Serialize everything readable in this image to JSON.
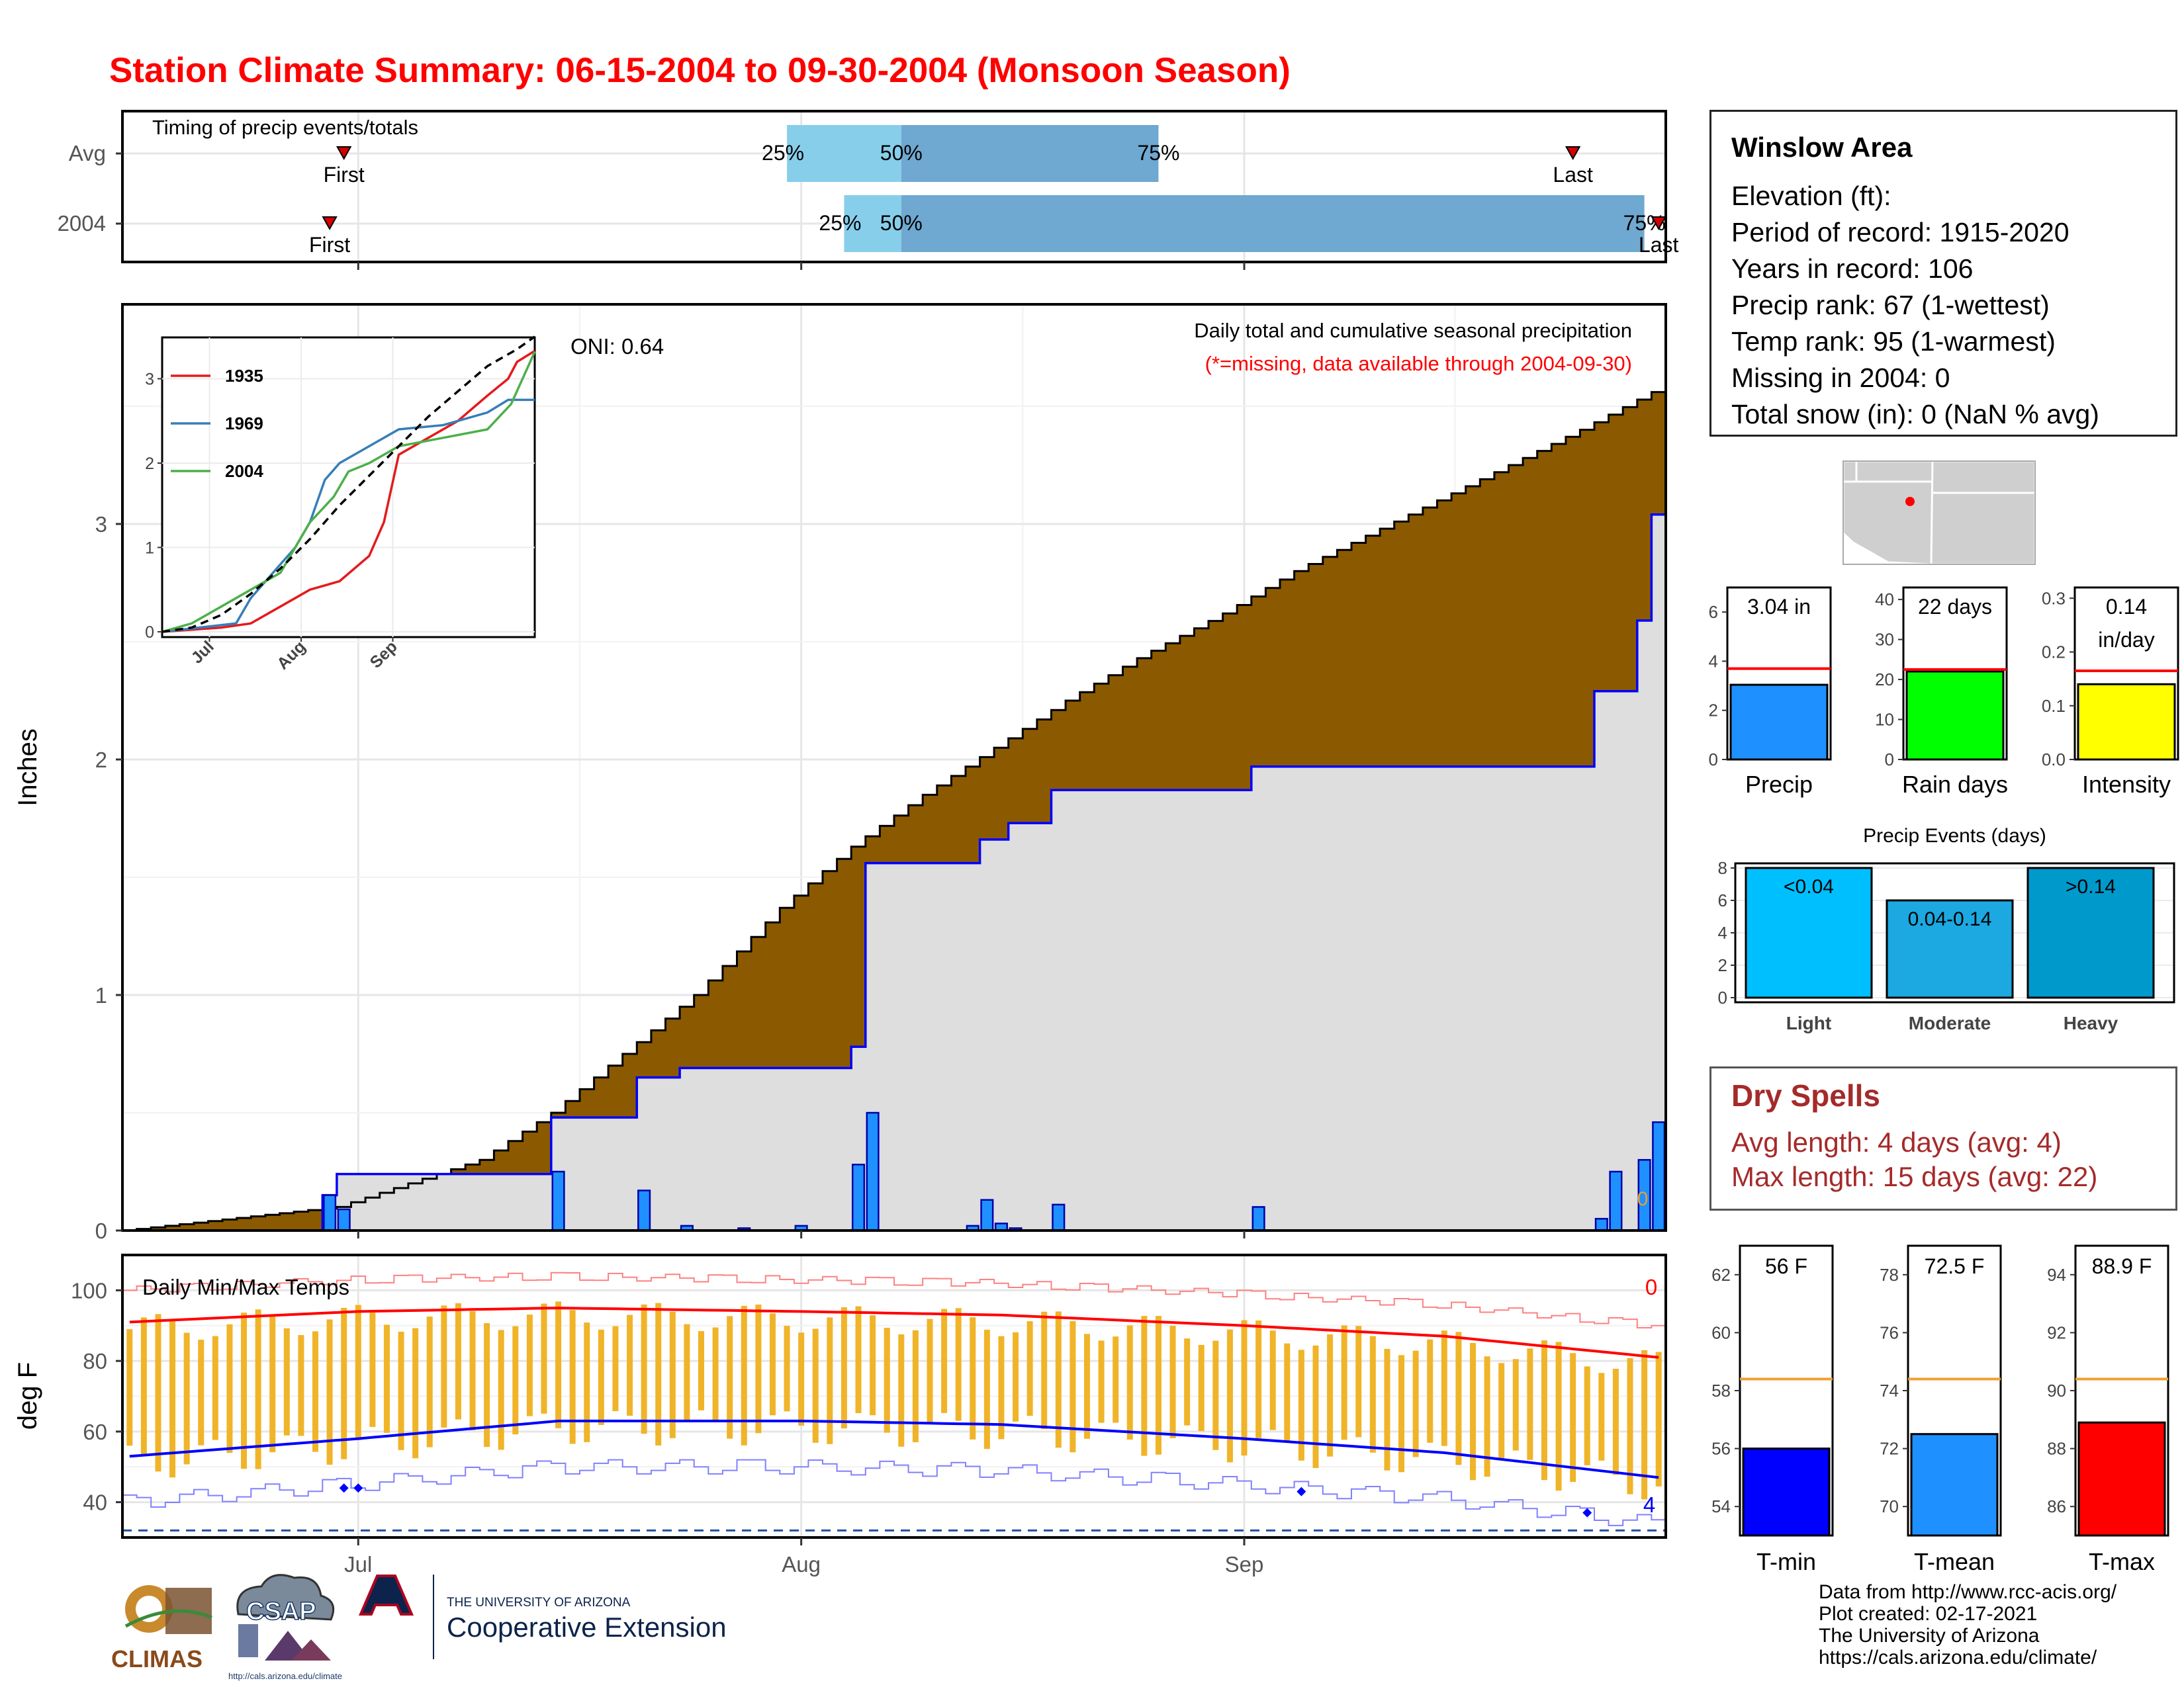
{
  "page": {
    "title": "Station Climate Summary: 06-15-2004 to 09-30-2004 (Monsoon Season)",
    "month_ticks": [
      "Jul",
      "Aug",
      "Sep"
    ]
  },
  "colors": {
    "title": "#ff0000",
    "cumulative_avg_fill": "#8b5a00",
    "cumulative_above_fill": "#1a8a1a",
    "observed_fill": "#dedede",
    "observed_line": "#0000ff",
    "daily_bar": "#1e90ff",
    "timing_light": "#87ceeb",
    "timing_dark": "#6fa8d0",
    "temp_bar": "#f0b429",
    "avg_max_line": "#ff0000",
    "avg_min_line": "#0000ff",
    "dry_spell_text": "#a52a2a"
  },
  "timing_panel": {
    "title": "Timing of precip events/totals",
    "rows": [
      {
        "label": "Avg",
        "first_date": "2004-06-30",
        "first_label": "First",
        "last_date": "2004-09-24",
        "last_label": "Last",
        "p25_date": "2004-07-31",
        "p50_date": "2004-08-08",
        "p75_date": "2004-08-26",
        "p25_label": "25%",
        "p50_label": "50%",
        "p75_label": "75%"
      },
      {
        "label": "2004",
        "first_date": "2004-06-29",
        "first_label": "First",
        "last_date": "2004-09-30",
        "last_label": "Last",
        "p25_date": "2004-08-04",
        "p50_date": "2004-08-08",
        "p75_date": "2004-09-29",
        "p25_label": "25%",
        "p50_label": "50%",
        "p75_label": "75%"
      }
    ]
  },
  "precip_panel": {
    "y_label": "Inches",
    "y_ticks": [
      "0",
      "1",
      "2",
      "3"
    ],
    "title": "Daily total and cumulative seasonal precipitation",
    "subtitle": "(*=missing, data available through 2004-09-30)",
    "oni": "ONI: 0.64",
    "missing_count": "0"
  },
  "inset": {
    "y_ticks": [
      "0",
      "1",
      "2",
      "3"
    ],
    "x_ticks": [
      "Jul",
      "Aug",
      "Sep"
    ],
    "legend": [
      {
        "name": "1935",
        "color": "#e41a1c"
      },
      {
        "name": "1969",
        "color": "#377eb8"
      },
      {
        "name": "2004",
        "color": "#4daf4a"
      }
    ]
  },
  "temp_panel": {
    "title": "Daily Min/Max Temps",
    "y_label": "deg F",
    "y_ticks": [
      "40",
      "60",
      "80",
      "100"
    ],
    "record_high_count": "0",
    "record_low_count": "4"
  },
  "station": {
    "name": "Winslow Area",
    "elevation": "Elevation (ft):",
    "period": "Period of record: 1915-2020",
    "years": "Years in record: 106",
    "precip_rank": "Precip rank: 67 (1-wettest)",
    "temp_rank": "Temp rank: 95 (1-warmest)",
    "missing": "Missing in 2004: 0",
    "snow": "Total snow (in): 0 (NaN % avg)"
  },
  "mini_bars": [
    {
      "label": "Precip",
      "value_label": "3.04 in",
      "value": 3.04,
      "avg": 3.7,
      "ymax": 7,
      "ticks": [
        "0",
        "2",
        "4",
        "6"
      ],
      "tick_values": [
        0,
        2,
        4,
        6
      ],
      "color": "#1e90ff"
    },
    {
      "label": "Rain days",
      "value_label": "22 days",
      "value": 22,
      "avg": 22.5,
      "ymax": 43,
      "ticks": [
        "0",
        "10",
        "20",
        "30",
        "40"
      ],
      "tick_values": [
        0,
        10,
        20,
        30,
        40
      ],
      "color": "#00ff00"
    },
    {
      "label": "Intensity",
      "value_label": "0.14",
      "value_label2": "in/day",
      "value": 0.14,
      "avg": 0.165,
      "ymax": 0.32,
      "ticks": [
        "0.0",
        "0.1",
        "0.2",
        "0.3"
      ],
      "tick_values": [
        0,
        0.1,
        0.2,
        0.3
      ],
      "color": "#ffff00"
    }
  ],
  "precip_events": {
    "title": "Precip Events (days)",
    "ticks": [
      "0",
      "2",
      "4",
      "6",
      "8"
    ],
    "bars": [
      {
        "label": "Light",
        "value_label": "<0.04",
        "value": 8,
        "color": "#00bfff"
      },
      {
        "label": "Moderate",
        "value_label": "0.04-0.14",
        "value": 6,
        "color": "#1ca8e0"
      },
      {
        "label": "Heavy",
        "value_label": ">0.14",
        "value": 8,
        "color": "#0099cc"
      }
    ]
  },
  "dry_spells": {
    "title": "Dry Spells",
    "avg_length": "Avg length: 4 days (avg: 4)",
    "max_length": "Max length: 15 days (avg: 22)"
  },
  "temp_summary": [
    {
      "label": "T-min",
      "value_label": "56 F",
      "value": 56,
      "avg": 58.4,
      "ymin": 53,
      "ymax": 63,
      "ticks": [
        "54",
        "56",
        "58",
        "60",
        "62"
      ],
      "tick_values": [
        54,
        56,
        58,
        60,
        62
      ],
      "color": "#0000ff"
    },
    {
      "label": "T-mean",
      "value_label": "72.5 F",
      "value": 72.5,
      "avg": 74.4,
      "ymin": 69,
      "ymax": 79,
      "ticks": [
        "70",
        "72",
        "74",
        "76",
        "78"
      ],
      "tick_values": [
        70,
        72,
        74,
        76,
        78
      ],
      "color": "#1e90ff"
    },
    {
      "label": "T-max",
      "value_label": "88.9 F",
      "value": 88.9,
      "avg": 90.4,
      "ymin": 85,
      "ymax": 95,
      "ticks": [
        "86",
        "88",
        "90",
        "92",
        "94"
      ],
      "tick_values": [
        86,
        88,
        90,
        92,
        94
      ],
      "color": "#ff0000"
    }
  ],
  "footer": [
    "Data from http://www.rcc-acis.org/",
    "Plot created: 02-17-2021",
    "The University of Arizona",
    "https://cals.arizona.edu/climate/"
  ],
  "logos": {
    "climas": "CLIMAS",
    "csap": "CSAP",
    "csap_url": "http://cals.arizona.edu/climate",
    "ua_small": "THE UNIVERSITY OF ARIZONA",
    "ua_big": "Cooperative Extension"
  },
  "chart_data": [
    {
      "type": "area",
      "title": "Daily total and cumulative seasonal precipitation",
      "ylabel": "Inches",
      "x_range": [
        "2004-06-15",
        "2004-09-30"
      ],
      "ylim": [
        0,
        3.8
      ],
      "series": [
        {
          "name": "average cumulative",
          "points": [
            [
              "2004-06-15",
              0.0
            ],
            [
              "2004-06-30",
              0.1
            ],
            [
              "2004-07-05",
              0.2
            ],
            [
              "2004-07-10",
              0.3
            ],
            [
              "2004-07-15",
              0.5
            ],
            [
              "2004-07-20",
              0.75
            ],
            [
              "2004-07-25",
              1.0
            ],
            [
              "2004-07-31",
              1.37
            ],
            [
              "2004-08-05",
              1.63
            ],
            [
              "2004-08-10",
              1.85
            ],
            [
              "2004-08-15",
              2.05
            ],
            [
              "2004-08-20",
              2.25
            ],
            [
              "2004-08-25",
              2.43
            ],
            [
              "2004-08-31",
              2.62
            ],
            [
              "2004-09-05",
              2.8
            ],
            [
              "2004-09-10",
              2.95
            ],
            [
              "2004-09-15",
              3.1
            ],
            [
              "2004-09-20",
              3.25
            ],
            [
              "2004-09-25",
              3.4
            ],
            [
              "2004-09-30",
              3.56
            ]
          ]
        },
        {
          "name": "2004 cumulative",
          "points": [
            [
              "2004-06-15",
              0.0
            ],
            [
              "2004-06-29",
              0.15
            ],
            [
              "2004-06-30",
              0.24
            ],
            [
              "2004-07-15",
              0.48
            ],
            [
              "2004-07-21",
              0.65
            ],
            [
              "2004-07-24",
              0.69
            ],
            [
              "2004-08-05",
              0.78
            ],
            [
              "2004-08-06",
              1.56
            ],
            [
              "2004-08-14",
              1.66
            ],
            [
              "2004-08-16",
              1.73
            ],
            [
              "2004-08-19",
              1.87
            ],
            [
              "2004-09-02",
              1.97
            ],
            [
              "2004-09-26",
              2.29
            ],
            [
              "2004-09-29",
              2.59
            ],
            [
              "2004-09-30",
              3.04
            ]
          ]
        }
      ],
      "daily_bars": [
        [
          "2004-06-29",
          0.15
        ],
        [
          "2004-06-30",
          0.09
        ],
        [
          "2004-07-15",
          0.25
        ],
        [
          "2004-07-21",
          0.17
        ],
        [
          "2004-07-24",
          0.02
        ],
        [
          "2004-07-28",
          0.01
        ],
        [
          "2004-08-01",
          0.02
        ],
        [
          "2004-08-05",
          0.28
        ],
        [
          "2004-08-06",
          0.5
        ],
        [
          "2004-08-13",
          0.02
        ],
        [
          "2004-08-14",
          0.13
        ],
        [
          "2004-08-15",
          0.03
        ],
        [
          "2004-08-16",
          0.01
        ],
        [
          "2004-08-19",
          0.11
        ],
        [
          "2004-09-02",
          0.1
        ],
        [
          "2004-09-26",
          0.05
        ],
        [
          "2004-09-27",
          0.25
        ],
        [
          "2004-09-29",
          0.3
        ],
        [
          "2004-09-30",
          0.46
        ]
      ]
    },
    {
      "type": "line",
      "title": "",
      "x": [
        "Jul",
        "Aug",
        "Sep"
      ],
      "ylim": [
        0,
        3.5
      ],
      "series": [
        {
          "name": "1935",
          "points": [
            [
              0,
              0
            ],
            [
              20,
              0.05
            ],
            [
              30,
              0.1
            ],
            [
              40,
              0.3
            ],
            [
              50,
              0.5
            ],
            [
              55,
              0.55
            ],
            [
              60,
              0.6
            ],
            [
              70,
              0.9
            ],
            [
              75,
              1.3
            ],
            [
              80,
              2.1
            ],
            [
              90,
              2.3
            ],
            [
              100,
              2.5
            ],
            [
              110,
              2.8
            ],
            [
              117,
              3.0
            ],
            [
              120,
              3.2
            ],
            [
              126,
              3.33
            ]
          ]
        },
        {
          "name": "1969",
          "points": [
            [
              0,
              0
            ],
            [
              25,
              0.1
            ],
            [
              30,
              0.4
            ],
            [
              40,
              0.8
            ],
            [
              45,
              1.0
            ],
            [
              50,
              1.3
            ],
            [
              55,
              1.8
            ],
            [
              60,
              2.0
            ],
            [
              70,
              2.2
            ],
            [
              80,
              2.4
            ],
            [
              95,
              2.45
            ],
            [
              110,
              2.6
            ],
            [
              117,
              2.75
            ],
            [
              126,
              2.75
            ]
          ]
        },
        {
          "name": "2004",
          "points": [
            [
              0,
              0
            ],
            [
              10,
              0.1
            ],
            [
              20,
              0.3
            ],
            [
              30,
              0.5
            ],
            [
              40,
              0.7
            ],
            [
              50,
              1.3
            ],
            [
              58,
              1.6
            ],
            [
              63,
              1.9
            ],
            [
              70,
              2.0
            ],
            [
              80,
              2.2
            ],
            [
              95,
              2.3
            ],
            [
              110,
              2.4
            ],
            [
              118,
              2.7
            ],
            [
              126,
              3.32
            ]
          ]
        },
        {
          "name": "average",
          "points": [
            [
              0,
              0
            ],
            [
              10,
              0.05
            ],
            [
              20,
              0.2
            ],
            [
              30,
              0.45
            ],
            [
              40,
              0.75
            ],
            [
              50,
              1.1
            ],
            [
              60,
              1.5
            ],
            [
              70,
              1.85
            ],
            [
              80,
              2.2
            ],
            [
              90,
              2.55
            ],
            [
              100,
              2.85
            ],
            [
              110,
              3.15
            ],
            [
              120,
              3.35
            ],
            [
              126,
              3.5
            ]
          ]
        }
      ]
    },
    {
      "type": "bar",
      "title": "Daily Min/Max Temps",
      "ylabel": "deg F",
      "ylim": [
        30,
        110
      ],
      "x_range": [
        "2004-06-15",
        "2004-09-30"
      ],
      "series": [
        {
          "name": "avg max",
          "points": [
            [
              "2004-06-15",
              91
            ],
            [
              "2004-07-01",
              94
            ],
            [
              "2004-07-15",
              95
            ],
            [
              "2004-08-01",
              94
            ],
            [
              "2004-08-15",
              93
            ],
            [
              "2004-09-01",
              90
            ],
            [
              "2004-09-15",
              87
            ],
            [
              "2004-09-30",
              81
            ]
          ]
        },
        {
          "name": "avg min",
          "points": [
            [
              "2004-06-15",
              53
            ],
            [
              "2004-07-01",
              58
            ],
            [
              "2004-07-15",
              63
            ],
            [
              "2004-08-01",
              63
            ],
            [
              "2004-08-15",
              62
            ],
            [
              "2004-09-01",
              58
            ],
            [
              "2004-09-15",
              54
            ],
            [
              "2004-09-30",
              47
            ]
          ]
        }
      ]
    }
  ]
}
